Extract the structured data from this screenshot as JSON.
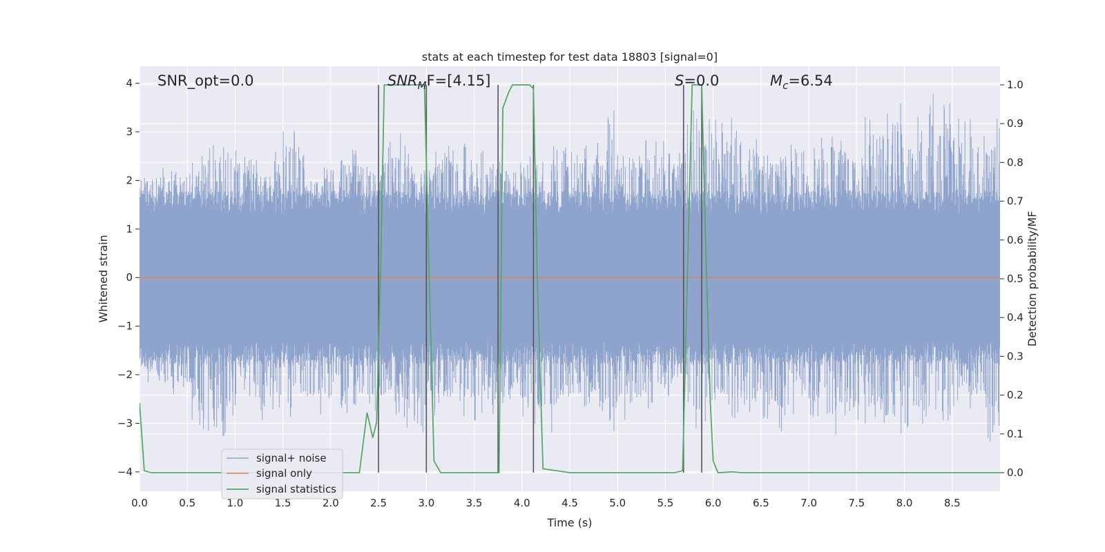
{
  "chart_data": {
    "type": "line",
    "title": "stats at each timestep for test data 18803 [signal=0]",
    "xlabel": "Time (s)",
    "ylabel": "Whitened strain",
    "y2label": "Detection probability/MF",
    "xlim": [
      0,
      9
    ],
    "ylim": [
      -4.4,
      4.35
    ],
    "y2lim": [
      -0.048,
      1.048
    ],
    "xticks": [
      "0.0",
      "0.5",
      "1.0",
      "1.5",
      "2.0",
      "2.5",
      "3.0",
      "3.5",
      "4.0",
      "4.5",
      "5.0",
      "5.5",
      "6.0",
      "6.5",
      "7.0",
      "7.5",
      "8.0",
      "8.5"
    ],
    "yticks": [
      "4",
      "3",
      "2",
      "1",
      "0",
      "−1",
      "−2",
      "−3",
      "−4"
    ],
    "y2ticks": [
      "1.0",
      "0.9",
      "0.8",
      "0.7",
      "0.6",
      "0.5",
      "0.4",
      "0.3",
      "0.2",
      "0.1",
      "0.0"
    ],
    "grid": true,
    "legend_position": "lower-left",
    "annotations": {
      "snr_opt": "SNR_opt=0.0",
      "snr_mf_base": "SNR",
      "snr_mf_sub": "M",
      "snr_mf_rest": "F=[4.15]",
      "s_base": "S",
      "s_rest": "=0.0",
      "mc_base": "M",
      "mc_sub": "c",
      "mc_rest": "=6.54"
    },
    "series": [
      {
        "name": "signal+ noise",
        "color": "#8fa4cc",
        "kind": "noise",
        "envelope_pos": [
          2.05,
          2.3,
          2.3,
          2.6,
          3.0,
          2.6,
          2.3,
          3.5,
          2.0,
          2.5,
          2.7,
          2.4,
          3.1,
          2.3,
          2.7,
          2.9,
          2.6,
          2.5,
          2.6,
          2.8,
          2.7,
          2.9,
          3.5,
          2.8,
          3.1,
          2.5,
          3.9,
          3.2,
          3.4,
          2.6,
          2.8,
          2.6,
          3.3,
          2.8,
          3.5,
          3.8,
          3.3,
          3.9,
          3.6,
          3.2,
          3.3
        ],
        "envelope_neg": [
          -1.9,
          -2.6,
          -2.5,
          -3.6,
          -3.3,
          -2.8,
          -3.0,
          -2.9,
          -2.8,
          -3.0,
          -2.7,
          -2.9,
          -3.1,
          -3.3,
          -2.8,
          -2.9,
          -3.0,
          -2.6,
          -3.0,
          -3.3,
          -2.8,
          -2.7,
          -3.3,
          -2.9,
          -2.7,
          -2.4,
          -3.3,
          -2.9,
          -3.0,
          -3.1,
          -3.4,
          -2.8,
          -3.4,
          -3.0,
          -3.2,
          -3.5,
          -3.1,
          -3.2,
          -2.8,
          -3.2,
          -3.6
        ]
      },
      {
        "name": "signal only",
        "color": "#dd8452",
        "x": [
          0,
          9
        ],
        "y": [
          0,
          0
        ]
      },
      {
        "name": "signal statistics",
        "color": "#55a868",
        "axis": "right",
        "x": [
          0.0,
          0.05,
          0.12,
          0.3,
          1.0,
          2.0,
          2.3,
          2.38,
          2.44,
          2.48,
          2.52,
          2.56,
          2.62,
          2.8,
          2.98,
          3.02,
          3.08,
          3.15,
          3.5,
          3.76,
          3.8,
          3.86,
          3.9,
          4.0,
          4.08,
          4.12,
          4.16,
          4.22,
          4.5,
          5.0,
          5.6,
          5.68,
          5.73,
          5.78,
          5.88,
          5.92,
          5.97,
          6.0,
          6.05,
          6.2,
          6.3,
          6.5,
          7.0,
          8.0,
          9.0
        ],
        "y": [
          0.18,
          0.005,
          0.0,
          0.0,
          0.0,
          0.0,
          0.0,
          0.155,
          0.09,
          0.13,
          0.5,
          1.0,
          1.0,
          1.0,
          1.0,
          0.6,
          0.03,
          0.0,
          0.0,
          0.0,
          0.94,
          0.98,
          1.0,
          1.0,
          1.0,
          0.99,
          0.5,
          0.01,
          0.0,
          0.0,
          0.0,
          0.005,
          0.5,
          1.0,
          1.0,
          0.6,
          0.18,
          0.03,
          0.0,
          0.002,
          0.0,
          0.0,
          0.0,
          0.0,
          0.0
        ]
      }
    ],
    "vertical_lines": [
      2.5,
      3.0,
      3.75,
      4.12,
      5.69,
      5.88
    ]
  }
}
